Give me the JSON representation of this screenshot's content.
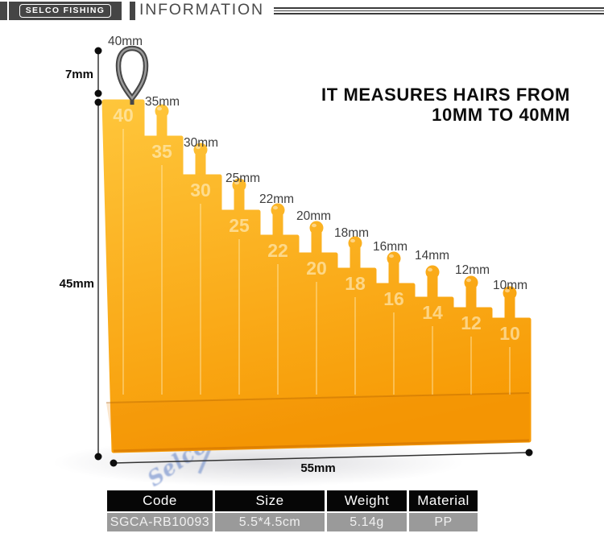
{
  "header": {
    "logo": "SELCO FISHING",
    "title": "INFORMATION"
  },
  "headline": {
    "line1": "IT MEASURES HAIRS FROM",
    "line2": "10MM TO 40MM"
  },
  "tool": {
    "steps": [
      {
        "value": "40",
        "label": "40mm"
      },
      {
        "value": "35",
        "label": "35mm"
      },
      {
        "value": "30",
        "label": "30mm"
      },
      {
        "value": "25",
        "label": "25mm"
      },
      {
        "value": "22",
        "label": "22mm"
      },
      {
        "value": "20",
        "label": "20mm"
      },
      {
        "value": "18",
        "label": "18mm"
      },
      {
        "value": "16",
        "label": "16mm"
      },
      {
        "value": "14",
        "label": "14mm"
      },
      {
        "value": "12",
        "label": "12mm"
      },
      {
        "value": "10",
        "label": "10mm"
      }
    ],
    "watermark": "Selco",
    "body_color_top": "#ffc93f",
    "body_color_bottom": "#f79a04"
  },
  "dimensions": {
    "height_top": "7mm",
    "height_body": "45mm",
    "width_bottom": "55mm"
  },
  "spec_table": {
    "headers": [
      "Code",
      "Size",
      "Weight",
      "Material"
    ],
    "values": [
      "SGCA-RB10093",
      "5.5*4.5cm",
      "5.14g",
      "PP"
    ],
    "header_bg": "#060606",
    "value_bg": "#9a9a9a"
  }
}
